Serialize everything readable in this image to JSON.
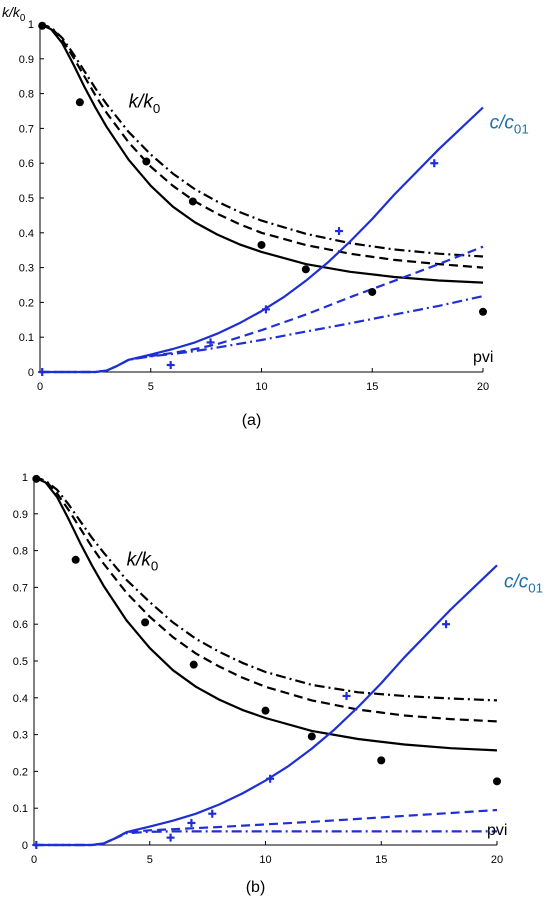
{
  "colors": {
    "black": "#000000",
    "blue": "#1f2fd6",
    "curve_label_blue": "#1f6fa8"
  },
  "chart_data": [
    {
      "panel_label": "(a)",
      "type": "line",
      "xlim": [
        0,
        20
      ],
      "ylim": [
        0,
        1
      ],
      "x_ticks": [
        0,
        5,
        10,
        15,
        20
      ],
      "y_ticks": [
        0,
        0.1,
        0.2,
        0.3,
        0.4,
        0.5,
        0.6,
        0.7,
        0.8,
        0.9,
        1
      ],
      "x_tick_labels": [
        "0",
        "5",
        "10",
        "15",
        "20"
      ],
      "y_tick_labels": [
        "0",
        "0.1",
        "0.2",
        "0.3",
        "0.4",
        "0.5",
        "0.6",
        "0.7",
        "0.8",
        "0.9",
        "1"
      ],
      "xlabel": "pvi",
      "ylabel": "k/k0",
      "annotations": [
        {
          "text": "k/k0",
          "x": 4.0,
          "y": 0.76,
          "color": "#000000"
        },
        {
          "text": "c/c01",
          "x": 20.3,
          "y": 0.7,
          "color": "#1f6fa8"
        }
      ],
      "series": [
        {
          "style": "solid",
          "color": "#000000",
          "x": [
            0,
            0.5,
            1,
            1.5,
            2,
            2.5,
            3,
            4,
            5,
            6,
            7,
            8,
            9,
            10,
            12,
            14,
            16,
            18,
            20
          ],
          "y": [
            1.0,
            0.985,
            0.945,
            0.885,
            0.82,
            0.76,
            0.705,
            0.61,
            0.535,
            0.475,
            0.43,
            0.395,
            0.367,
            0.345,
            0.31,
            0.288,
            0.273,
            0.263,
            0.257
          ]
        },
        {
          "style": "dashed",
          "color": "#000000",
          "x": [
            0,
            0.5,
            1,
            1.5,
            2,
            2.5,
            3,
            4,
            5,
            6,
            7,
            8,
            9,
            10,
            12,
            14,
            16,
            18,
            20
          ],
          "y": [
            1.0,
            0.99,
            0.955,
            0.905,
            0.85,
            0.795,
            0.745,
            0.66,
            0.59,
            0.535,
            0.49,
            0.455,
            0.425,
            0.4,
            0.365,
            0.34,
            0.322,
            0.31,
            0.3
          ]
        },
        {
          "style": "dashdot",
          "color": "#000000",
          "x": [
            0,
            0.5,
            1,
            1.5,
            2,
            2.5,
            3,
            4,
            5,
            6,
            7,
            8,
            9,
            10,
            12,
            14,
            16,
            18,
            20
          ],
          "y": [
            1.0,
            0.99,
            0.96,
            0.915,
            0.865,
            0.815,
            0.77,
            0.69,
            0.625,
            0.57,
            0.525,
            0.49,
            0.46,
            0.435,
            0.397,
            0.37,
            0.352,
            0.34,
            0.332
          ]
        },
        {
          "style": "solid",
          "color": "#1f2fd6",
          "x": [
            0,
            2.5,
            3,
            3.5,
            4,
            5,
            6,
            7,
            8,
            9,
            10,
            11,
            12,
            13,
            14,
            15,
            16,
            17,
            18,
            19,
            20
          ],
          "y": [
            0,
            0,
            0.004,
            0.018,
            0.035,
            0.05,
            0.066,
            0.085,
            0.11,
            0.14,
            0.175,
            0.215,
            0.262,
            0.315,
            0.375,
            0.44,
            0.51,
            0.575,
            0.64,
            0.7,
            0.76
          ]
        },
        {
          "style": "dashed",
          "color": "#1f2fd6",
          "x": [
            0,
            2.5,
            3,
            3.5,
            4,
            5,
            6,
            7,
            8,
            10,
            12,
            14,
            16,
            18,
            20
          ],
          "y": [
            0,
            0,
            0.004,
            0.018,
            0.035,
            0.046,
            0.055,
            0.066,
            0.08,
            0.12,
            0.165,
            0.215,
            0.262,
            0.31,
            0.36
          ]
        },
        {
          "style": "dashdot",
          "color": "#1f2fd6",
          "x": [
            0,
            2.5,
            3,
            3.5,
            4,
            5,
            6,
            7,
            8,
            10,
            12,
            14,
            16,
            18,
            20
          ],
          "y": [
            0,
            0,
            0.004,
            0.018,
            0.035,
            0.045,
            0.052,
            0.06,
            0.07,
            0.092,
            0.116,
            0.14,
            0.165,
            0.19,
            0.218
          ]
        }
      ],
      "points": [
        {
          "marker": "dot",
          "color": "#000000",
          "x": [
            0.1,
            1.8,
            4.8,
            6.9,
            10.0,
            12.0,
            15.0,
            20.0
          ],
          "y": [
            0.995,
            0.775,
            0.605,
            0.49,
            0.365,
            0.295,
            0.23,
            0.173
          ]
        },
        {
          "marker": "plus",
          "color": "#1f2fd6",
          "x": [
            0.1,
            5.9,
            7.7,
            10.2,
            13.5,
            17.8
          ],
          "y": [
            0,
            0.02,
            0.085,
            0.18,
            0.405,
            0.6
          ]
        }
      ]
    },
    {
      "panel_label": "(b)",
      "type": "line",
      "xlim": [
        0,
        20
      ],
      "ylim": [
        0,
        1
      ],
      "x_ticks": [
        0,
        5,
        10,
        15,
        20
      ],
      "y_ticks": [
        0,
        0.1,
        0.2,
        0.3,
        0.4,
        0.5,
        0.6,
        0.7,
        0.8,
        0.9,
        1
      ],
      "x_tick_labels": [
        "0",
        "5",
        "10",
        "15",
        "20"
      ],
      "y_tick_labels": [
        "0",
        "0.1",
        "0.2",
        "0.3",
        "0.4",
        "0.5",
        "0.6",
        "0.7",
        "0.8",
        "0.9",
        "1"
      ],
      "xlabel": "pvi",
      "ylabel": "",
      "annotations": [
        {
          "text": "k/k0",
          "x": 4.0,
          "y": 0.76,
          "color": "#000000"
        },
        {
          "text": "c/c01",
          "x": 20.3,
          "y": 0.7,
          "color": "#1f6fa8"
        }
      ],
      "series": [
        {
          "style": "solid",
          "color": "#000000",
          "x": [
            0,
            0.5,
            1,
            1.5,
            2,
            2.5,
            3,
            4,
            5,
            6,
            7,
            8,
            9,
            10,
            12,
            14,
            16,
            18,
            20
          ],
          "y": [
            1.0,
            0.985,
            0.945,
            0.885,
            0.82,
            0.76,
            0.705,
            0.61,
            0.535,
            0.475,
            0.43,
            0.395,
            0.367,
            0.345,
            0.31,
            0.288,
            0.273,
            0.263,
            0.257
          ]
        },
        {
          "style": "dashed",
          "color": "#000000",
          "x": [
            0,
            0.5,
            1,
            1.5,
            2,
            2.5,
            3,
            4,
            5,
            6,
            7,
            8,
            9,
            10,
            12,
            14,
            16,
            18,
            20
          ],
          "y": [
            1.0,
            0.99,
            0.955,
            0.91,
            0.86,
            0.81,
            0.765,
            0.685,
            0.62,
            0.565,
            0.52,
            0.485,
            0.455,
            0.43,
            0.393,
            0.368,
            0.352,
            0.342,
            0.336
          ]
        },
        {
          "style": "dashdot",
          "color": "#000000",
          "x": [
            0,
            0.5,
            1,
            1.5,
            2,
            2.5,
            3,
            4,
            5,
            6,
            7,
            8,
            9,
            10,
            12,
            14,
            16,
            18,
            20
          ],
          "y": [
            1.0,
            0.99,
            0.965,
            0.925,
            0.88,
            0.835,
            0.795,
            0.72,
            0.66,
            0.605,
            0.56,
            0.525,
            0.495,
            0.47,
            0.435,
            0.415,
            0.405,
            0.398,
            0.393
          ]
        },
        {
          "style": "solid",
          "color": "#1f2fd6",
          "x": [
            0,
            2.5,
            3,
            3.5,
            4,
            5,
            6,
            7,
            8,
            9,
            10,
            11,
            12,
            13,
            14,
            15,
            16,
            17,
            18,
            19,
            20
          ],
          "y": [
            0,
            0,
            0.004,
            0.018,
            0.035,
            0.05,
            0.066,
            0.085,
            0.11,
            0.14,
            0.175,
            0.215,
            0.262,
            0.315,
            0.375,
            0.44,
            0.51,
            0.575,
            0.64,
            0.7,
            0.76
          ]
        },
        {
          "style": "dashed",
          "color": "#1f2fd6",
          "x": [
            0,
            2.5,
            3,
            3.5,
            4,
            5,
            6,
            8,
            10,
            12,
            14,
            16,
            18,
            20
          ],
          "y": [
            0,
            0,
            0.004,
            0.018,
            0.035,
            0.04,
            0.043,
            0.049,
            0.056,
            0.063,
            0.071,
            0.079,
            0.087,
            0.095
          ]
        },
        {
          "style": "dashdot",
          "color": "#1f2fd6",
          "x": [
            0,
            2.5,
            3,
            3.5,
            4,
            5,
            6,
            8,
            10,
            12,
            14,
            16,
            18,
            20
          ],
          "y": [
            0,
            0,
            0.004,
            0.018,
            0.032,
            0.036,
            0.037,
            0.037,
            0.037,
            0.037,
            0.037,
            0.037,
            0.037,
            0.037
          ]
        }
      ],
      "points": [
        {
          "marker": "dot",
          "color": "#000000",
          "x": [
            0.1,
            1.8,
            4.8,
            6.9,
            10.0,
            12.0,
            15.0,
            20.0
          ],
          "y": [
            0.995,
            0.775,
            0.605,
            0.49,
            0.365,
            0.295,
            0.23,
            0.173
          ]
        },
        {
          "marker": "plus",
          "color": "#1f2fd6",
          "x": [
            0.1,
            5.9,
            7.7,
            10.2,
            13.5,
            17.8,
            6.8
          ],
          "y": [
            0,
            0.02,
            0.085,
            0.18,
            0.405,
            0.6,
            0.06
          ]
        }
      ]
    }
  ]
}
